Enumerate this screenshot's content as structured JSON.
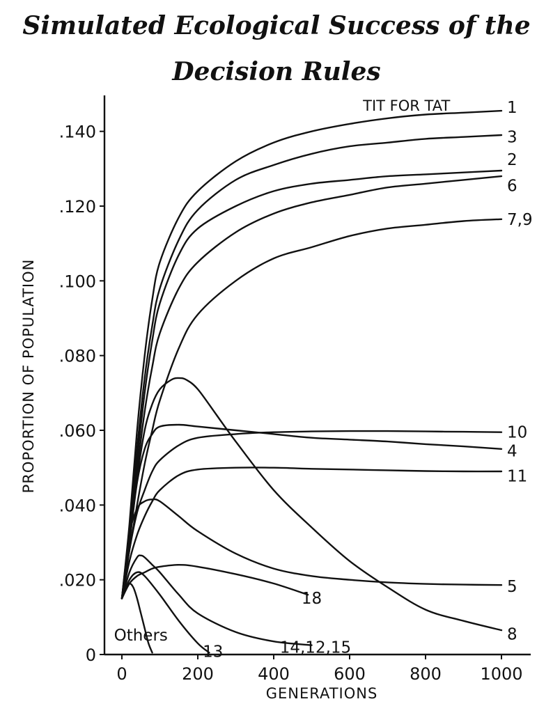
{
  "chart_data": {
    "type": "line",
    "title": "Simulated Ecological Success of the Decision Rules",
    "xlabel": "GENERATIONS",
    "ylabel": "PROPORTION OF POPULATION",
    "xlim": [
      0,
      1000
    ],
    "ylim": [
      0,
      0.15
    ],
    "x_ticks": [
      "0",
      "200",
      "400",
      "600",
      "800",
      "1000"
    ],
    "y_ticks": [
      "0",
      ".020",
      ".040",
      ".060",
      ".080",
      ".100",
      ".120",
      ".140"
    ],
    "grid": false,
    "legend": "none",
    "annotations": [
      {
        "text": "TIT FOR TAT",
        "x": 750,
        "y": 0.147
      }
    ],
    "series": [
      {
        "name": "1",
        "x": [
          0,
          20,
          40,
          60,
          80,
          100,
          150,
          200,
          300,
          400,
          500,
          600,
          700,
          800,
          900,
          1000
        ],
        "y": [
          0.015,
          0.035,
          0.06,
          0.08,
          0.095,
          0.105,
          0.117,
          0.124,
          0.132,
          0.137,
          0.14,
          0.142,
          0.1435,
          0.1445,
          0.145,
          0.1455
        ]
      },
      {
        "name": "3",
        "x": [
          0,
          20,
          40,
          60,
          80,
          100,
          150,
          200,
          300,
          400,
          500,
          600,
          700,
          800,
          900,
          1000
        ],
        "y": [
          0.015,
          0.033,
          0.055,
          0.074,
          0.088,
          0.098,
          0.111,
          0.119,
          0.127,
          0.131,
          0.134,
          0.136,
          0.137,
          0.138,
          0.1385,
          0.139
        ]
      },
      {
        "name": "2",
        "x": [
          0,
          20,
          40,
          60,
          80,
          100,
          150,
          200,
          300,
          400,
          500,
          600,
          700,
          800,
          900,
          1000
        ],
        "y": [
          0.015,
          0.032,
          0.052,
          0.07,
          0.084,
          0.094,
          0.107,
          0.114,
          0.12,
          0.124,
          0.126,
          0.127,
          0.128,
          0.1285,
          0.129,
          0.1295
        ]
      },
      {
        "name": "6",
        "x": [
          0,
          20,
          40,
          60,
          80,
          100,
          150,
          200,
          300,
          400,
          500,
          600,
          700,
          800,
          900,
          1000
        ],
        "y": [
          0.015,
          0.031,
          0.049,
          0.065,
          0.077,
          0.086,
          0.098,
          0.105,
          0.113,
          0.118,
          0.121,
          0.123,
          0.125,
          0.126,
          0.127,
          0.128
        ]
      },
      {
        "name": "7,9",
        "x": [
          0,
          20,
          40,
          60,
          80,
          100,
          150,
          200,
          300,
          400,
          500,
          600,
          700,
          800,
          900,
          1000
        ],
        "y": [
          0.015,
          0.028,
          0.04,
          0.051,
          0.06,
          0.068,
          0.082,
          0.091,
          0.1,
          0.106,
          0.109,
          0.112,
          0.114,
          0.115,
          0.116,
          0.1165
        ]
      },
      {
        "name": "10",
        "x": [
          0,
          20,
          40,
          60,
          80,
          100,
          150,
          200,
          300,
          400,
          500,
          600,
          700,
          800,
          900,
          1000
        ],
        "y": [
          0.015,
          0.028,
          0.038,
          0.044,
          0.049,
          0.052,
          0.056,
          0.058,
          0.059,
          0.0595,
          0.0597,
          0.0598,
          0.0598,
          0.0597,
          0.0596,
          0.0595
        ]
      },
      {
        "name": "4",
        "x": [
          0,
          20,
          40,
          60,
          80,
          100,
          150,
          200,
          300,
          400,
          500,
          600,
          700,
          800,
          900,
          1000
        ],
        "y": [
          0.015,
          0.03,
          0.046,
          0.055,
          0.059,
          0.061,
          0.0615,
          0.061,
          0.06,
          0.059,
          0.058,
          0.0575,
          0.057,
          0.0563,
          0.0557,
          0.055
        ]
      },
      {
        "name": "11",
        "x": [
          0,
          20,
          40,
          60,
          80,
          100,
          150,
          200,
          300,
          400,
          500,
          600,
          700,
          800,
          900,
          1000
        ],
        "y": [
          0.015,
          0.025,
          0.032,
          0.037,
          0.041,
          0.044,
          0.048,
          0.0495,
          0.05,
          0.05,
          0.0497,
          0.0495,
          0.0493,
          0.0491,
          0.049,
          0.049
        ]
      },
      {
        "name": "5",
        "x": [
          0,
          20,
          40,
          60,
          80,
          100,
          150,
          200,
          300,
          400,
          500,
          600,
          700,
          800,
          900,
          1000
        ],
        "y": [
          0.015,
          0.032,
          0.039,
          0.041,
          0.0415,
          0.041,
          0.037,
          0.033,
          0.027,
          0.023,
          0.021,
          0.02,
          0.0193,
          0.0189,
          0.0187,
          0.0186
        ]
      },
      {
        "name": "8",
        "x": [
          0,
          20,
          40,
          60,
          80,
          100,
          130,
          150,
          170,
          200,
          250,
          300,
          400,
          500,
          600,
          700,
          800,
          900,
          1000
        ],
        "y": [
          0.015,
          0.03,
          0.047,
          0.06,
          0.067,
          0.071,
          0.0735,
          0.074,
          0.0735,
          0.071,
          0.064,
          0.057,
          0.044,
          0.034,
          0.025,
          0.018,
          0.012,
          0.009,
          0.0065
        ]
      },
      {
        "name": "18",
        "x": [
          0,
          20,
          40,
          60,
          80,
          100,
          150,
          200,
          300,
          400,
          490
        ],
        "y": [
          0.015,
          0.019,
          0.021,
          0.022,
          0.023,
          0.0235,
          0.024,
          0.0235,
          0.0215,
          0.019,
          0.016
        ]
      },
      {
        "name": "14,12,15",
        "x": [
          0,
          20,
          40,
          50,
          60,
          80,
          100,
          150,
          200,
          300,
          400,
          500
        ],
        "y": [
          0.015,
          0.022,
          0.026,
          0.0265,
          0.026,
          0.024,
          0.022,
          0.016,
          0.011,
          0.006,
          0.0035,
          0.0025
        ]
      },
      {
        "name": "13",
        "x": [
          0,
          20,
          40,
          60,
          100,
          150,
          200,
          230
        ],
        "y": [
          0.015,
          0.02,
          0.022,
          0.021,
          0.016,
          0.009,
          0.003,
          0.0005
        ]
      },
      {
        "name": "Others",
        "x": [
          0,
          10,
          20,
          30,
          40,
          50,
          60,
          70,
          80
        ],
        "y": [
          0.015,
          0.018,
          0.019,
          0.018,
          0.015,
          0.011,
          0.007,
          0.003,
          0.0005
        ]
      }
    ],
    "series_labels": [
      {
        "text": "1",
        "y": 0.1465
      },
      {
        "text": "3",
        "y": 0.1385
      },
      {
        "text": "2",
        "y": 0.1325
      },
      {
        "text": "6",
        "y": 0.1255
      },
      {
        "text": "7,9",
        "y": 0.1165
      },
      {
        "text": "10",
        "y": 0.0595
      },
      {
        "text": "4",
        "y": 0.0545
      },
      {
        "text": "11",
        "y": 0.0478
      },
      {
        "text": "5",
        "y": 0.0183
      },
      {
        "text": "8",
        "y": 0.0055
      },
      {
        "text": "18",
        "x": 500,
        "y": 0.0151
      },
      {
        "text": "14,12,15",
        "x": 510,
        "y": 0.002
      },
      {
        "text": "13",
        "x": 240,
        "y": 0.0008
      },
      {
        "text": "Others",
        "x": 50,
        "y": 0.0052
      }
    ]
  }
}
